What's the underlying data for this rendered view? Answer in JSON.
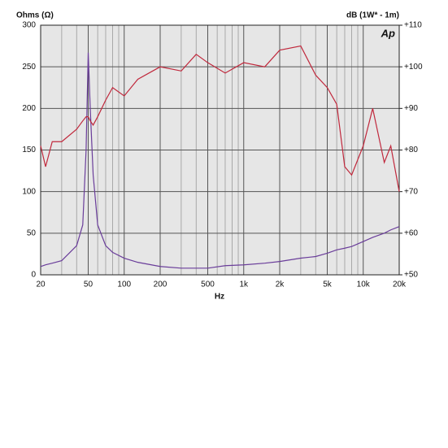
{
  "chart_data": {
    "type": "line",
    "ylabel": "Ohms (Ω)",
    "y2label": "dB (1W* - 1m)",
    "xlabel": "Hz",
    "logo": "Ap",
    "xscale": "log",
    "grid": true,
    "xlim": [
      20,
      20000
    ],
    "ylim": [
      0,
      300
    ],
    "y2lim": [
      50,
      110
    ],
    "xticks": [
      20,
      50,
      100,
      200,
      500,
      {
        "value": 1000,
        "label": "1k"
      },
      {
        "value": 2000,
        "label": "2k"
      },
      {
        "value": 5000,
        "label": "5k"
      },
      {
        "value": 10000,
        "label": "10k"
      },
      {
        "value": 20000,
        "label": "20k"
      }
    ],
    "xgrid": [
      30,
      40,
      60,
      70,
      80,
      90,
      300,
      400,
      600,
      700,
      800,
      900,
      3000,
      4000,
      6000,
      7000,
      8000,
      9000
    ],
    "yticks": [
      0,
      50,
      100,
      150,
      200,
      250,
      300
    ],
    "y2ticks": [
      {
        "value": 50,
        "label": "+50"
      },
      {
        "value": 60,
        "label": "+60"
      },
      {
        "value": 70,
        "label": "+70"
      },
      {
        "value": 80,
        "label": "+80"
      },
      {
        "value": 90,
        "label": "+90"
      },
      {
        "value": 100,
        "label": "+100"
      },
      {
        "value": 110,
        "label": "+110"
      }
    ],
    "x": [
      20,
      22,
      25,
      30,
      40,
      45,
      48,
      50,
      52,
      55,
      60,
      70,
      80,
      100,
      130,
      200,
      300,
      400,
      500,
      700,
      1000,
      1500,
      2000,
      3000,
      4000,
      5000,
      6000,
      7000,
      8000,
      10000,
      12000,
      15000,
      17000,
      20000
    ],
    "series": [
      {
        "color": "#6a3d9a",
        "values": [
          10,
          12,
          14,
          17,
          35,
          60,
          150,
          267,
          200,
          120,
          60,
          35,
          27,
          20,
          15,
          10,
          8,
          8,
          8,
          11,
          12,
          14,
          16,
          20,
          22,
          26,
          30,
          32,
          34,
          40,
          45,
          50,
          54,
          58
        ]
      },
      {
        "color": "#c0283c",
        "axis": "y2",
        "values": [
          81,
          76,
          82,
          82,
          85,
          87,
          88,
          88,
          87,
          86,
          88,
          92,
          95,
          93,
          97,
          100,
          99,
          103,
          101,
          98.5,
          101,
          100,
          104,
          105,
          98,
          95,
          91,
          76,
          74,
          81,
          90,
          77,
          81,
          70
        ]
      }
    ]
  }
}
